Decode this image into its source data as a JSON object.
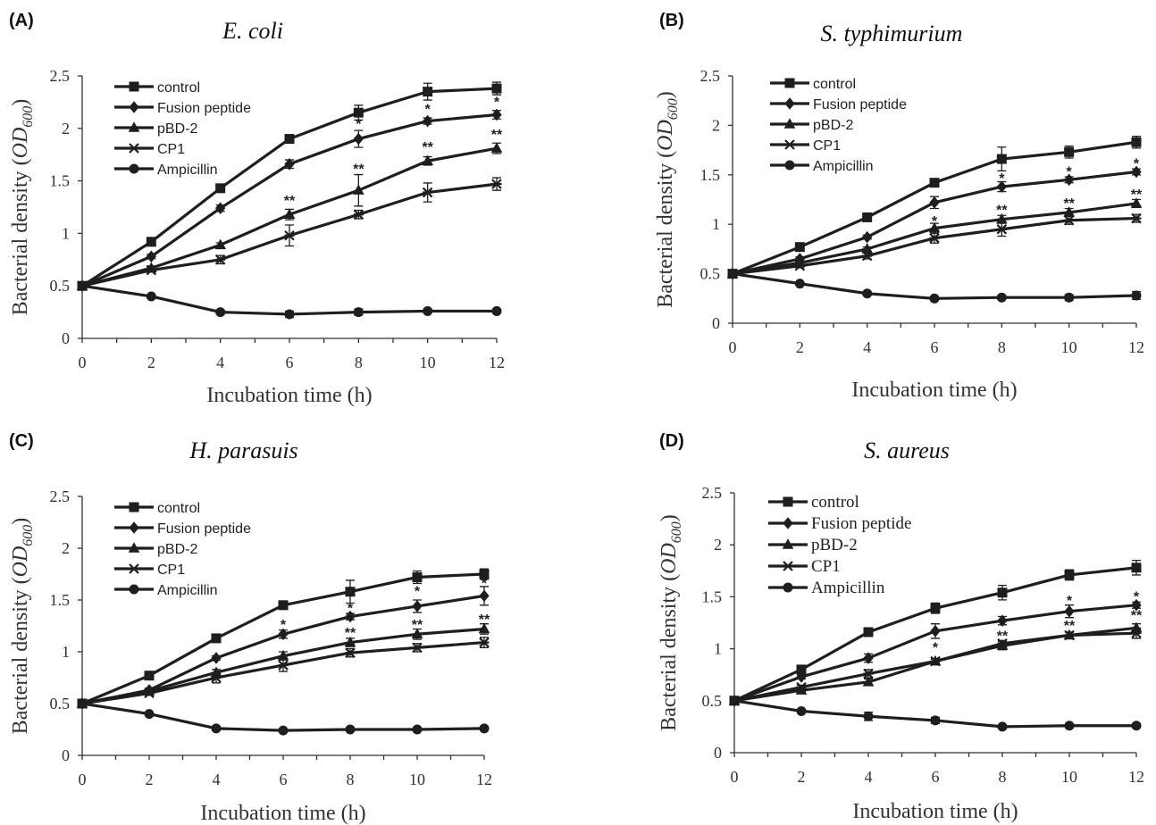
{
  "chart_data": [
    {
      "type": "line",
      "panel_label": "(A)",
      "title": "E. coli",
      "xlabel": "Incubation time (h)",
      "ylabel_main": "Bacterial density",
      "ylabel_sym": "OD",
      "ylabel_sub": "600",
      "x": [
        0,
        2,
        4,
        6,
        8,
        10,
        12
      ],
      "x_ticks": [
        "0",
        "2",
        "4",
        "6",
        "8",
        "10",
        "12"
      ],
      "ylim": [
        0,
        2.5
      ],
      "y_ticks": [
        "0",
        "0.5",
        "1",
        "1.5",
        "2",
        "2.5"
      ],
      "legend_position": "top-left",
      "series": [
        {
          "name": "control",
          "marker": "square",
          "values": [
            0.5,
            0.92,
            1.43,
            1.9,
            2.15,
            2.35,
            2.38
          ],
          "errors": [
            0,
            0.02,
            0.02,
            0.02,
            0.07,
            0.08,
            0.06
          ]
        },
        {
          "name": "Fusion peptide",
          "marker": "diamond",
          "values": [
            0.5,
            0.78,
            1.24,
            1.66,
            1.9,
            2.07,
            2.13
          ],
          "errors": [
            0,
            0.02,
            0.03,
            0.04,
            0.08,
            0.03,
            0.04
          ]
        },
        {
          "name": "pBD-2",
          "marker": "triangle",
          "values": [
            0.5,
            0.67,
            0.89,
            1.18,
            1.41,
            1.69,
            1.81
          ],
          "errors": [
            0,
            0.02,
            0.02,
            0.05,
            0.15,
            0.04,
            0.05
          ]
        },
        {
          "name": "CP1",
          "marker": "star",
          "values": [
            0.5,
            0.65,
            0.75,
            0.98,
            1.18,
            1.39,
            1.47
          ],
          "errors": [
            0,
            0.02,
            0.04,
            0.1,
            0.04,
            0.09,
            0.06
          ]
        },
        {
          "name": "Ampicillin",
          "marker": "circle",
          "values": [
            0.5,
            0.4,
            0.25,
            0.23,
            0.25,
            0.26,
            0.26
          ],
          "errors": [
            0,
            0.01,
            0.02,
            0.03,
            0.03,
            0.02,
            0.02
          ]
        }
      ],
      "annotations": [
        {
          "x": 6,
          "y": 1.31,
          "text": "**"
        },
        {
          "x": 8,
          "y": 1.61,
          "text": "**"
        },
        {
          "x": 8,
          "y": 2.04,
          "text": "*"
        },
        {
          "x": 10,
          "y": 1.82,
          "text": "**"
        },
        {
          "x": 10,
          "y": 2.18,
          "text": "*"
        },
        {
          "x": 12,
          "y": 1.94,
          "text": "**"
        },
        {
          "x": 12,
          "y": 2.25,
          "text": "*"
        }
      ]
    },
    {
      "type": "line",
      "panel_label": "(B)",
      "title": "S. typhimurium",
      "xlabel": "Incubation time (h)",
      "ylabel_main": "Bacterial density",
      "ylabel_sym": "OD",
      "ylabel_sub": "600",
      "x": [
        0,
        2,
        4,
        6,
        8,
        10,
        12
      ],
      "x_ticks": [
        "0",
        "2",
        "4",
        "6",
        "8",
        "10",
        "12"
      ],
      "ylim": [
        0,
        2.5
      ],
      "y_ticks": [
        "0",
        "0.5",
        "1",
        "1.5",
        "2",
        "2.5"
      ],
      "legend_position": "top-left",
      "series": [
        {
          "name": "control",
          "marker": "square",
          "values": [
            0.5,
            0.77,
            1.07,
            1.42,
            1.66,
            1.73,
            1.83
          ],
          "errors": [
            0,
            0.02,
            0.02,
            0.04,
            0.12,
            0.06,
            0.06
          ]
        },
        {
          "name": "Fusion peptide",
          "marker": "diamond",
          "values": [
            0.5,
            0.65,
            0.87,
            1.22,
            1.38,
            1.45,
            1.53
          ],
          "errors": [
            0,
            0.02,
            0.02,
            0.06,
            0.05,
            0.03,
            0.03
          ]
        },
        {
          "name": "pBD-2",
          "marker": "triangle",
          "values": [
            0.5,
            0.61,
            0.75,
            0.96,
            1.05,
            1.12,
            1.21
          ],
          "errors": [
            0,
            0.02,
            0.02,
            0.05,
            0.04,
            0.04,
            0.04
          ]
        },
        {
          "name": "CP1",
          "marker": "star",
          "values": [
            0.5,
            0.58,
            0.68,
            0.86,
            0.95,
            1.04,
            1.06
          ],
          "errors": [
            0,
            0.02,
            0.03,
            0.05,
            0.07,
            0.04,
            0.04
          ]
        },
        {
          "name": "Ampicillin",
          "marker": "circle",
          "values": [
            0.5,
            0.4,
            0.3,
            0.25,
            0.26,
            0.26,
            0.28
          ],
          "errors": [
            0,
            0.01,
            0.02,
            0.02,
            0.02,
            0.03,
            0.04
          ]
        }
      ],
      "annotations": [
        {
          "x": 6,
          "y": 1.03,
          "text": "*"
        },
        {
          "x": 8,
          "y": 1.14,
          "text": "**"
        },
        {
          "x": 8,
          "y": 1.46,
          "text": "*"
        },
        {
          "x": 10,
          "y": 1.21,
          "text": "**"
        },
        {
          "x": 10,
          "y": 1.53,
          "text": "*"
        },
        {
          "x": 12,
          "y": 1.3,
          "text": "**"
        },
        {
          "x": 12,
          "y": 1.61,
          "text": "*"
        }
      ]
    },
    {
      "type": "line",
      "panel_label": "(C)",
      "title": "H. parasuis",
      "xlabel": "Incubation time (h)",
      "ylabel_main": "Bacterial density",
      "ylabel_sym": "OD",
      "ylabel_sub": "600",
      "x": [
        0,
        2,
        4,
        6,
        8,
        10,
        12
      ],
      "x_ticks": [
        "0",
        "2",
        "4",
        "6",
        "8",
        "10",
        "12"
      ],
      "ylim": [
        0,
        2.5
      ],
      "y_ticks": [
        "0",
        "0.5",
        "1",
        "1.5",
        "2",
        "2.5"
      ],
      "legend_position": "top-left",
      "series": [
        {
          "name": "control",
          "marker": "square",
          "values": [
            0.5,
            0.77,
            1.13,
            1.45,
            1.58,
            1.72,
            1.75
          ],
          "errors": [
            0,
            0.02,
            0.02,
            0.04,
            0.11,
            0.06,
            0.05
          ]
        },
        {
          "name": "Fusion peptide",
          "marker": "diamond",
          "values": [
            0.5,
            0.63,
            0.94,
            1.17,
            1.34,
            1.44,
            1.54
          ],
          "errors": [
            0,
            0.02,
            0.02,
            0.04,
            0.03,
            0.06,
            0.09
          ]
        },
        {
          "name": "pBD-2",
          "marker": "triangle",
          "values": [
            0.5,
            0.62,
            0.8,
            0.96,
            1.09,
            1.17,
            1.22
          ],
          "errors": [
            0,
            0.02,
            0.03,
            0.04,
            0.04,
            0.05,
            0.05
          ]
        },
        {
          "name": "CP1",
          "marker": "star",
          "values": [
            0.5,
            0.6,
            0.75,
            0.87,
            0.99,
            1.04,
            1.09
          ],
          "errors": [
            0,
            0.02,
            0.05,
            0.06,
            0.04,
            0.04,
            0.05
          ]
        },
        {
          "name": "Ampicillin",
          "marker": "circle",
          "values": [
            0.5,
            0.4,
            0.26,
            0.24,
            0.25,
            0.25,
            0.26
          ],
          "errors": [
            0,
            0.01,
            0.02,
            0.02,
            0.02,
            0.02,
            0.02
          ]
        }
      ],
      "annotations": [
        {
          "x": 6,
          "y": 1.26,
          "text": "*"
        },
        {
          "x": 8,
          "y": 1.18,
          "text": "**"
        },
        {
          "x": 8,
          "y": 1.42,
          "text": "*"
        },
        {
          "x": 10,
          "y": 1.26,
          "text": "**"
        },
        {
          "x": 10,
          "y": 1.58,
          "text": "*"
        },
        {
          "x": 12,
          "y": 1.31,
          "text": "**"
        },
        {
          "x": 12,
          "y": 1.66,
          "text": "*"
        }
      ]
    },
    {
      "type": "line",
      "panel_label": "(D)",
      "title": "S. aureus",
      "xlabel": "Incubation time (h)",
      "ylabel_main": "Bacterial density",
      "ylabel_sym": "OD",
      "ylabel_sub": "600",
      "x": [
        0,
        2,
        4,
        6,
        8,
        10,
        12
      ],
      "x_ticks": [
        "0",
        "2",
        "4",
        "6",
        "8",
        "10",
        "12"
      ],
      "ylim": [
        0,
        2.5
      ],
      "y_ticks": [
        "0",
        "0.5",
        "1",
        "1.5",
        "2",
        "2.5"
      ],
      "legend_position": "top-left",
      "series": [
        {
          "name": "control",
          "marker": "square",
          "values": [
            0.5,
            0.8,
            1.16,
            1.39,
            1.54,
            1.71,
            1.78
          ],
          "errors": [
            0,
            0.02,
            0.02,
            0.05,
            0.07,
            0.05,
            0.07
          ]
        },
        {
          "name": "Fusion peptide",
          "marker": "diamond",
          "values": [
            0.5,
            0.73,
            0.91,
            1.17,
            1.27,
            1.36,
            1.42
          ],
          "errors": [
            0,
            0.02,
            0.04,
            0.07,
            0.04,
            0.06,
            0.03
          ]
        },
        {
          "name": "pBD-2",
          "marker": "triangle",
          "values": [
            0.5,
            0.6,
            0.68,
            0.88,
            1.03,
            1.13,
            1.2
          ],
          "errors": [
            0,
            0.02,
            0.03,
            0.02,
            0.04,
            0.03,
            0.04
          ]
        },
        {
          "name": "CP1",
          "marker": "star",
          "values": [
            0.5,
            0.63,
            0.76,
            0.88,
            1.05,
            1.13,
            1.15
          ],
          "errors": [
            0,
            0.02,
            0.04,
            0.02,
            0.03,
            0.03,
            0.05
          ]
        },
        {
          "name": "Ampicillin",
          "marker": "circle",
          "values": [
            0.5,
            0.4,
            0.35,
            0.31,
            0.25,
            0.26,
            0.26
          ],
          "errors": [
            0,
            0.01,
            0.04,
            0.03,
            0.02,
            0.02,
            0.02
          ]
        }
      ],
      "annotations": [
        {
          "x": 6,
          "y": 1.01,
          "text": "*"
        },
        {
          "x": 8,
          "y": 1.12,
          "text": "**"
        },
        {
          "x": 10,
          "y": 1.22,
          "text": "**"
        },
        {
          "x": 10,
          "y": 1.46,
          "text": "*"
        },
        {
          "x": 12,
          "y": 1.32,
          "text": "**"
        },
        {
          "x": 12,
          "y": 1.5,
          "text": "*"
        }
      ]
    }
  ]
}
